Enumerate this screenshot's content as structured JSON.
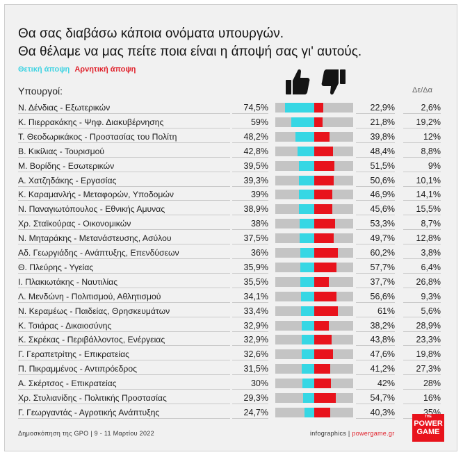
{
  "title_line1": "Θα σας διαβάσω κάποια ονόματα υπουργών.",
  "title_line2": "Θα θέλαμε να μας πείτε ποια είναι η άποψή σας γι' αυτούς.",
  "legend": {
    "positive": "Θετική άποψη",
    "negative": "Αρνητική άποψη"
  },
  "column_headers": {
    "ministers": "Υπουργοί:",
    "difference": "Δε/Δα"
  },
  "icons": {
    "positive": "thumbs-up-icon",
    "negative": "thumbs-down-icon"
  },
  "colors": {
    "positive": "#36d7e4",
    "negative": "#e8131c",
    "track": "#c4c4c4"
  },
  "chart_data": {
    "type": "bar",
    "ylim": [
      0,
      100
    ],
    "series": [
      {
        "name": "Θετική άποψη",
        "key": "positive"
      },
      {
        "name": "Αρνητική άποψη",
        "key": "negative"
      },
      {
        "name": "Δε/Δα",
        "key": "difference"
      }
    ],
    "rows": [
      {
        "label": "Ν. Δένδιας - Εξωτερικών",
        "positive": "74,5%",
        "negative": "22,9%",
        "difference": "2,6%"
      },
      {
        "label": "Κ. Πιερρακάκης - Ψηφ. Διακυβέρνησης",
        "positive": "59%",
        "negative": "21,8%",
        "difference": "19,2%"
      },
      {
        "label": "Τ. Θεοδωρικάκος - Προστασίας του Πολίτη",
        "positive": "48,2%",
        "negative": "39,8%",
        "difference": "12%"
      },
      {
        "label": "Β. Κικίλιας - Τουρισμού",
        "positive": "42,8%",
        "negative": "48,4%",
        "difference": "8,8%"
      },
      {
        "label": "Μ. Βορίδης - Εσωτερικών",
        "positive": "39,5%",
        "negative": "51,5%",
        "difference": "9%"
      },
      {
        "label": "Α. Χατζηδάκης - Εργασίας",
        "positive": "39,3%",
        "negative": "50,6%",
        "difference": "10,1%"
      },
      {
        "label": "Κ. Καραμανλής - Μεταφορών, Υποδομών",
        "positive": "39%",
        "negative": "46,9%",
        "difference": "14,1%"
      },
      {
        "label": "Ν. Παναγιωτόπουλος - Εθνικής Αμυνας",
        "positive": "38,9%",
        "negative": "45,6%",
        "difference": "15,5%"
      },
      {
        "label": "Χρ. Σταϊκούρας - Οικονομικών",
        "positive": "38%",
        "negative": "53,3%",
        "difference": "8,7%"
      },
      {
        "label": "Ν. Μηταράκης - Μετανάστευσης, Ασύλου",
        "positive": "37,5%",
        "negative": "49,7%",
        "difference": "12,8%"
      },
      {
        "label": "Αδ. Γεωργιάδης - Ανάπτυξης, Επενδύσεων",
        "positive": "36%",
        "negative": "60,2%",
        "difference": "3,8%"
      },
      {
        "label": "Θ. Πλεύρης - Υγείας",
        "positive": "35,9%",
        "negative": "57,7%",
        "difference": "6,4%"
      },
      {
        "label": "Ι. Πλακιωτάκης - Ναυτιλίας",
        "positive": "35,5%",
        "negative": "37,7%",
        "difference": "26,8%"
      },
      {
        "label": "Λ. Μενδώνη - Πολιτισμού, Αθλητισμού",
        "positive": "34,1%",
        "negative": "56,6%",
        "difference": "9,3%"
      },
      {
        "label": "Ν. Κεραμέως - Παιδείας, Θρησκευμάτων",
        "positive": "33,4%",
        "negative": "61%",
        "difference": "5,6%"
      },
      {
        "label": "Κ. Τσιάρας - Δικαιοσύνης",
        "positive": "32,9%",
        "negative": "38,2%",
        "difference": "28,9%"
      },
      {
        "label": "Κ. Σκρέκας - Περιβάλλοντος, Ενέργειας",
        "positive": "32,9%",
        "negative": "43,8%",
        "difference": "23,3%"
      },
      {
        "label": "Γ. Γεραπετρίτης - Επικρατείας",
        "positive": "32,6%",
        "negative": "47,6%",
        "difference": "19,8%"
      },
      {
        "label": "Π. Πικραμμένος - Αντιπρόεδρος",
        "positive": "31,5%",
        "negative": "41,2%",
        "difference": "27,3%"
      },
      {
        "label": "Α. Σκέρτσος - Επικρατείας",
        "positive": "30%",
        "negative": "42%",
        "difference": "28%"
      },
      {
        "label": "Χρ. Στυλιανίδης - Πολιτικής Προστασίας",
        "positive": "29,3%",
        "negative": "54,7%",
        "difference": "16%"
      },
      {
        "label": "Γ. Γεωργαντάς - Αγροτικής Ανάπτυξης",
        "positive": "24,7%",
        "negative": "40,3%",
        "difference": "35%"
      }
    ]
  },
  "footer": {
    "source": "Δημοσκόπηση της GPO | 9 - 11 Μαρτίου 2022",
    "credit_prefix": "infographics |",
    "credit_site": "powergame.gr"
  },
  "logo": {
    "top": "THE",
    "line1": "POWER",
    "line2": "GAME"
  }
}
